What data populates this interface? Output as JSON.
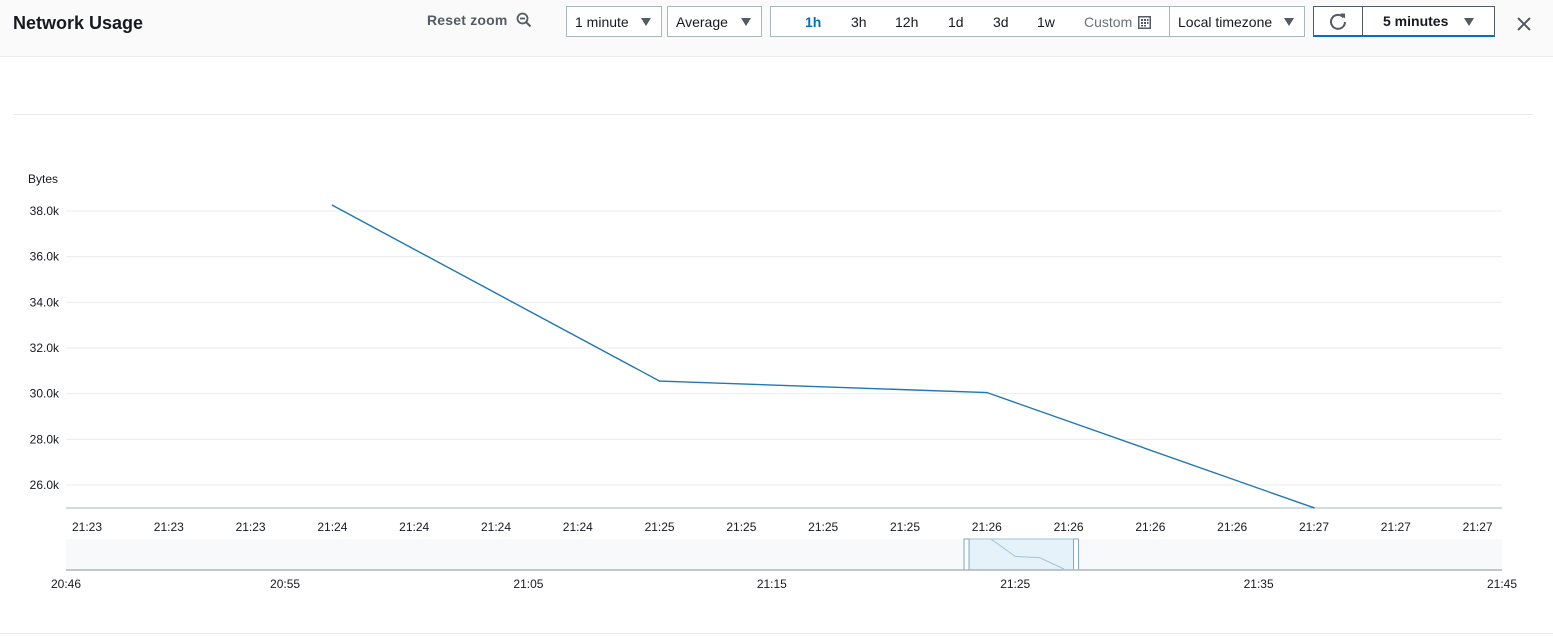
{
  "header": {
    "title": "Network Usage",
    "reset_zoom_label": "Reset zoom",
    "period_select": "1 minute",
    "statistic_select": "Average",
    "time_ranges": [
      "1h",
      "3h",
      "12h",
      "1d",
      "3d",
      "1w"
    ],
    "active_range": "1h",
    "custom_label": "Custom",
    "timezone_select": "Local timezone",
    "refresh_interval": "5 minutes"
  },
  "colors": {
    "series": "#1f77b4",
    "accent": "#0073bb"
  },
  "icons": [
    "zoom-out-icon",
    "caret-down-icon",
    "calendar-icon",
    "refresh-icon",
    "close-icon"
  ],
  "chart_data": {
    "type": "line",
    "ylabel": "Bytes",
    "ylim": [
      25000,
      39000
    ],
    "y_ticks": [
      "38.0k",
      "36.0k",
      "34.0k",
      "32.0k",
      "30.0k",
      "28.0k",
      "26.0k"
    ],
    "y_tick_values": [
      38000,
      36000,
      34000,
      32000,
      30000,
      28000,
      26000
    ],
    "x_ticks": [
      "21:23",
      "21:23",
      "21:23",
      "21:24",
      "21:24",
      "21:24",
      "21:24",
      "21:25",
      "21:25",
      "21:25",
      "21:25",
      "21:26",
      "21:26",
      "21:26",
      "21:26",
      "21:27",
      "21:27",
      "21:27"
    ],
    "x_tick_index_range": [
      0,
      17
    ],
    "series": [
      {
        "x_index": [
          3,
          7,
          11,
          15
        ],
        "x": [
          "21:24",
          "21:25",
          "21:26",
          "21:27"
        ],
        "values": [
          38250,
          30550,
          30050,
          25000
        ]
      }
    ],
    "grid": true,
    "navigator": {
      "x_ticks": [
        "20:46",
        "20:55",
        "21:05",
        "21:15",
        "21:25",
        "21:35",
        "21:45"
      ],
      "x_tick_minutes": [
        1246,
        1255,
        1265,
        1275,
        1285,
        1295,
        1305
      ],
      "range_minutes": [
        1246,
        1305
      ],
      "selection_minutes": [
        1283,
        1287.5
      ],
      "series_minutes": [
        1284,
        1285,
        1286,
        1287
      ],
      "series_values": [
        38250,
        30550,
        30050,
        25000
      ]
    }
  }
}
